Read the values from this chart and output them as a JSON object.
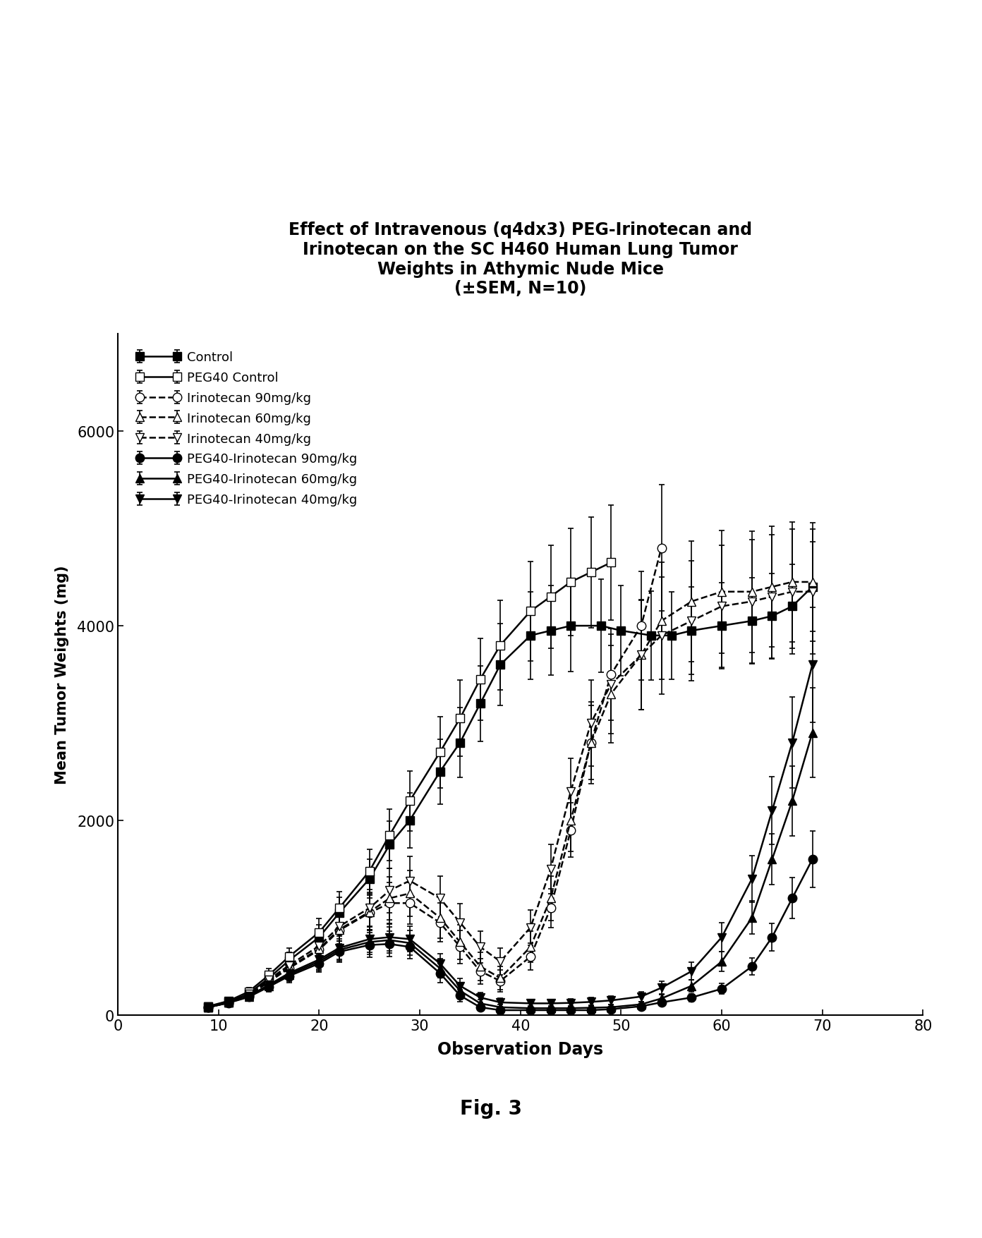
{
  "title": "Effect of Intravenous (q4dx3) PEG-Irinotecan and\nIrinotecan on the SC H460 Human Lung Tumor\nWeights in Athymic Nude Mice\n(±SEM, N=10)",
  "xlabel": "Observation Days",
  "ylabel": "Mean Tumor Weights (mg)",
  "xlim": [
    0,
    80
  ],
  "ylim": [
    0,
    7000
  ],
  "yticks": [
    0,
    2000,
    4000,
    6000
  ],
  "xticks": [
    0,
    10,
    20,
    30,
    40,
    50,
    60,
    70,
    80
  ],
  "fig_caption": "Fig. 3",
  "series": [
    {
      "label": "Control",
      "linestyle": "-",
      "marker": "s",
      "fillstyle": "full",
      "color": "#000000",
      "x": [
        9,
        11,
        13,
        15,
        17,
        20,
        22,
        25,
        27,
        29,
        32,
        34,
        36,
        38,
        41,
        43,
        45,
        48,
        50,
        53,
        55,
        57,
        60,
        63,
        65,
        67,
        69
      ],
      "y": [
        80,
        130,
        220,
        380,
        560,
        800,
        1050,
        1400,
        1750,
        2000,
        2500,
        2800,
        3200,
        3600,
        3900,
        3950,
        4000,
        4000,
        3950,
        3900,
        3900,
        3950,
        4000,
        4050,
        4100,
        4200,
        4400
      ],
      "yerr": [
        15,
        25,
        40,
        60,
        85,
        130,
        160,
        200,
        240,
        280,
        330,
        360,
        390,
        420,
        450,
        460,
        470,
        475,
        465,
        455,
        450,
        450,
        445,
        440,
        435,
        430,
        460
      ]
    },
    {
      "label": "PEG40 Control",
      "linestyle": "-",
      "marker": "s",
      "fillstyle": "none",
      "color": "#000000",
      "x": [
        9,
        11,
        13,
        15,
        17,
        20,
        22,
        25,
        27,
        29,
        32,
        34,
        36,
        38,
        41,
        43,
        45,
        47,
        49
      ],
      "y": [
        90,
        145,
        240,
        410,
        600,
        850,
        1100,
        1480,
        1850,
        2200,
        2700,
        3050,
        3450,
        3800,
        4150,
        4300,
        4450,
        4550,
        4650
      ],
      "yerr": [
        18,
        28,
        45,
        68,
        90,
        140,
        170,
        220,
        265,
        310,
        365,
        390,
        420,
        460,
        510,
        530,
        550,
        570,
        590
      ]
    },
    {
      "label": "Irinotecan 90mg/kg",
      "linestyle": "--",
      "marker": "o",
      "fillstyle": "none",
      "color": "#000000",
      "x": [
        9,
        11,
        13,
        15,
        17,
        20,
        22,
        25,
        27,
        29,
        32,
        34,
        36,
        38,
        41,
        43,
        45,
        47,
        49,
        52,
        54
      ],
      "y": [
        80,
        130,
        200,
        340,
        480,
        670,
        870,
        1050,
        1150,
        1150,
        950,
        700,
        450,
        350,
        600,
        1100,
        1900,
        2800,
        3500,
        4000,
        4800
      ],
      "yerr": [
        15,
        25,
        40,
        58,
        80,
        115,
        145,
        180,
        210,
        215,
        200,
        170,
        130,
        110,
        140,
        200,
        280,
        380,
        470,
        560,
        650
      ]
    },
    {
      "label": "Irinotecan 60mg/kg",
      "linestyle": "--",
      "marker": "^",
      "fillstyle": "none",
      "color": "#000000",
      "x": [
        9,
        11,
        13,
        15,
        17,
        20,
        22,
        25,
        27,
        29,
        32,
        34,
        36,
        38,
        41,
        43,
        45,
        47,
        49,
        52,
        54,
        57,
        60,
        63,
        65,
        67,
        69
      ],
      "y": [
        80,
        130,
        205,
        350,
        490,
        680,
        880,
        1060,
        1200,
        1250,
        1000,
        750,
        500,
        380,
        700,
        1200,
        2000,
        2800,
        3300,
        3700,
        4050,
        4250,
        4350,
        4350,
        4400,
        4450,
        4450
      ],
      "yerr": [
        15,
        25,
        40,
        60,
        82,
        118,
        148,
        185,
        220,
        235,
        210,
        180,
        145,
        120,
        160,
        230,
        320,
        420,
        500,
        560,
        600,
        620,
        630,
        625,
        620,
        615,
        610
      ]
    },
    {
      "label": "Irinotecan 40mg/kg",
      "linestyle": "--",
      "marker": "v",
      "fillstyle": "none",
      "color": "#000000",
      "x": [
        9,
        11,
        13,
        15,
        17,
        20,
        22,
        25,
        27,
        29,
        32,
        34,
        36,
        38,
        41,
        43,
        45,
        47,
        49,
        52,
        54,
        57,
        60,
        63,
        65,
        67,
        69
      ],
      "y": [
        85,
        138,
        215,
        365,
        510,
        710,
        910,
        1100,
        1280,
        1380,
        1200,
        950,
        700,
        550,
        900,
        1500,
        2300,
        3000,
        3400,
        3700,
        3900,
        4050,
        4200,
        4250,
        4300,
        4350,
        4350
      ],
      "yerr": [
        15,
        27,
        42,
        63,
        85,
        122,
        152,
        192,
        228,
        248,
        225,
        195,
        165,
        140,
        180,
        255,
        340,
        440,
        510,
        565,
        600,
        618,
        628,
        635,
        638,
        640,
        640
      ]
    },
    {
      "label": "PEG40-Irinotecan 90mg/kg",
      "linestyle": "-",
      "marker": "o",
      "fillstyle": "full",
      "color": "#000000",
      "x": [
        9,
        11,
        13,
        15,
        17,
        20,
        22,
        25,
        27,
        29,
        32,
        34,
        36,
        38,
        41,
        43,
        45,
        47,
        49,
        52,
        54,
        57,
        60,
        63,
        65,
        67,
        69
      ],
      "y": [
        80,
        125,
        185,
        290,
        400,
        530,
        650,
        720,
        730,
        700,
        430,
        200,
        80,
        50,
        50,
        50,
        50,
        50,
        60,
        90,
        130,
        180,
        270,
        500,
        800,
        1200,
        1600
      ],
      "yerr": [
        15,
        24,
        36,
        50,
        68,
        90,
        110,
        125,
        130,
        120,
        95,
        60,
        30,
        20,
        20,
        20,
        20,
        20,
        22,
        26,
        32,
        40,
        55,
        90,
        140,
        210,
        290
      ]
    },
    {
      "label": "PEG40-Irinotecan 60mg/kg",
      "linestyle": "-",
      "marker": "^",
      "fillstyle": "full",
      "color": "#000000",
      "x": [
        9,
        11,
        13,
        15,
        17,
        20,
        22,
        25,
        27,
        29,
        32,
        34,
        36,
        38,
        41,
        43,
        45,
        47,
        49,
        52,
        54,
        57,
        60,
        63,
        65,
        67,
        69
      ],
      "y": [
        80,
        128,
        190,
        300,
        415,
        550,
        670,
        750,
        770,
        740,
        480,
        250,
        120,
        80,
        70,
        70,
        70,
        75,
        80,
        110,
        170,
        300,
        550,
        1000,
        1600,
        2200,
        2900
      ],
      "yerr": [
        15,
        24,
        37,
        52,
        70,
        93,
        114,
        128,
        132,
        126,
        98,
        68,
        40,
        28,
        25,
        25,
        25,
        26,
        27,
        30,
        40,
        60,
        100,
        170,
        260,
        360,
        460
      ]
    },
    {
      "label": "PEG40-Irinotecan 40mg/kg",
      "linestyle": "-",
      "marker": "v",
      "fillstyle": "full",
      "color": "#000000",
      "x": [
        9,
        11,
        13,
        15,
        17,
        20,
        22,
        25,
        27,
        29,
        32,
        34,
        36,
        38,
        41,
        43,
        45,
        47,
        49,
        52,
        54,
        57,
        60,
        63,
        65,
        67,
        69
      ],
      "y": [
        85,
        132,
        195,
        310,
        430,
        570,
        690,
        780,
        800,
        780,
        530,
        300,
        180,
        130,
        120,
        120,
        125,
        135,
        150,
        190,
        280,
        450,
        800,
        1400,
        2100,
        2800,
        3600
      ],
      "yerr": [
        15,
        25,
        38,
        54,
        73,
        97,
        118,
        134,
        138,
        130,
        102,
        75,
        52,
        40,
        38,
        38,
        40,
        42,
        45,
        52,
        65,
        90,
        150,
        240,
        350,
        470,
        590
      ]
    }
  ]
}
